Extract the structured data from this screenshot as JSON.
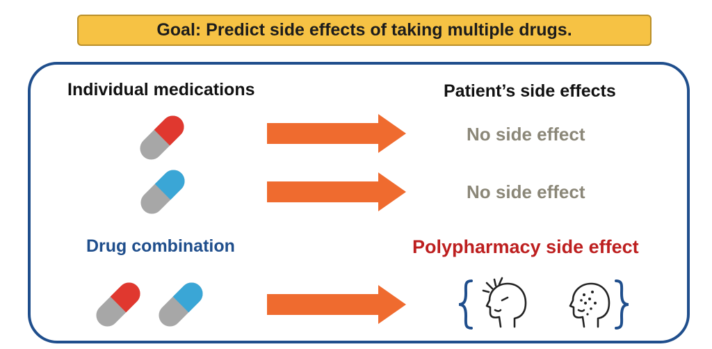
{
  "goal_text": "Goal: Predict side effects of taking multiple drugs.",
  "left_header": "Individual medications",
  "right_header": "Patient’s side effects",
  "outcome_1": "No side effect",
  "outcome_2": "No side effect",
  "combo_label": "Drug combination",
  "poly_label": "Polypharmacy side effect",
  "colors": {
    "goal_fill": "#f6c244",
    "panel_border": "#1f4e8c",
    "arrow": "#ef6b2f",
    "pill_red": "#e0382f",
    "pill_blue": "#3aa6d6",
    "pill_gray": "#a7a7a7",
    "no_effect_text": "#8b8778",
    "poly_text": "#bd1f1f"
  },
  "icons": [
    "pill-red-icon",
    "pill-blue-icon",
    "arrow-right-icon",
    "headache-face-icon",
    "rash-face-icon",
    "curly-brace-icon"
  ]
}
